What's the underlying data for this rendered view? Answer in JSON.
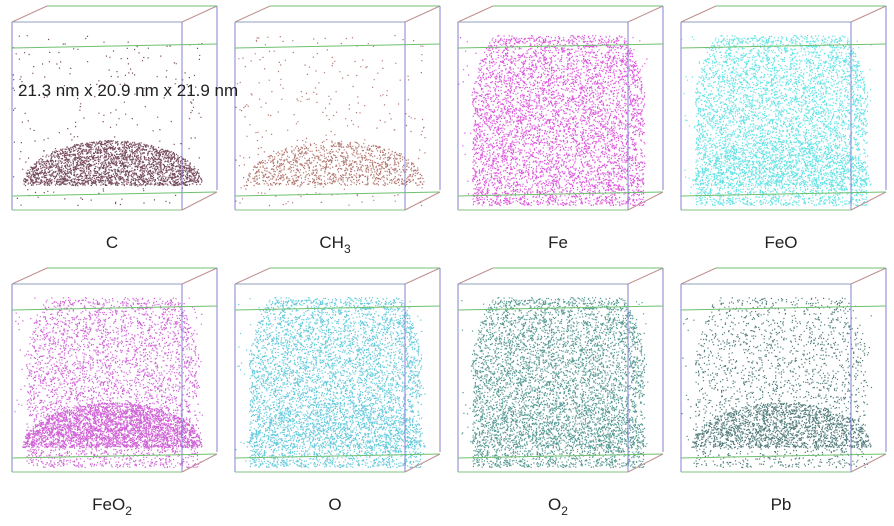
{
  "dimensions": "21.3 nm x 20.9 nm x 21.9 nm",
  "panels": [
    {
      "label": "C"
    },
    {
      "label": "CH",
      "subscript": "3"
    },
    {
      "label": "Fe"
    },
    {
      "label": "FeO"
    },
    {
      "label": "FeO",
      "subscript": "2"
    },
    {
      "label": "O"
    },
    {
      "label": "O",
      "subscript": "2"
    },
    {
      "label": "Pb"
    }
  ]
}
